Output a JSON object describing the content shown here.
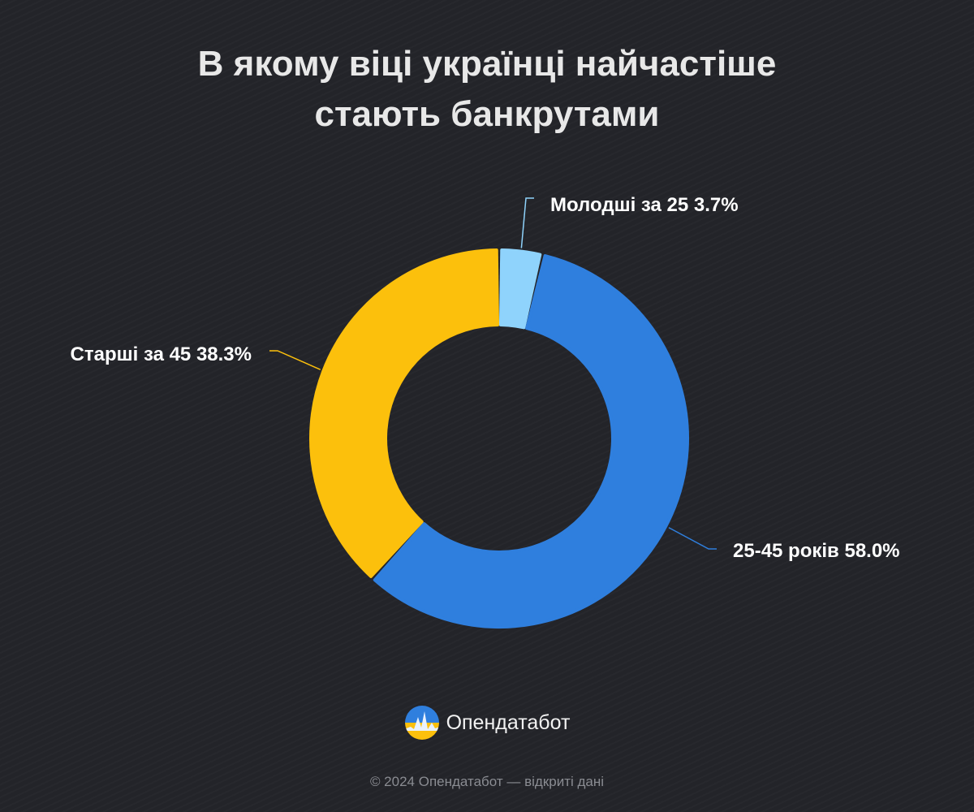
{
  "title_lines": [
    "В якому віці українці найчастіше",
    "стають банкрутами"
  ],
  "chart_data": {
    "type": "pie",
    "donut": true,
    "title": "В якому віці українці найчастіше стають банкрутами",
    "categories": [
      "Молодші за 25",
      "25-45 років",
      "Старші за 45"
    ],
    "values": [
      3.7,
      58.0,
      38.3
    ],
    "labels": [
      "Молодші за 25 3.7%",
      "25-45 років 58.0%",
      "Старші за 45 38.3%"
    ],
    "colors": [
      "#8fd3fc",
      "#2f7fde",
      "#fcc00c"
    ]
  },
  "brand": {
    "name": "Опендатабот",
    "logo_icon": "opendatabot-logo-icon"
  },
  "footer": "© 2024 Опендатабот — відкриті дані"
}
